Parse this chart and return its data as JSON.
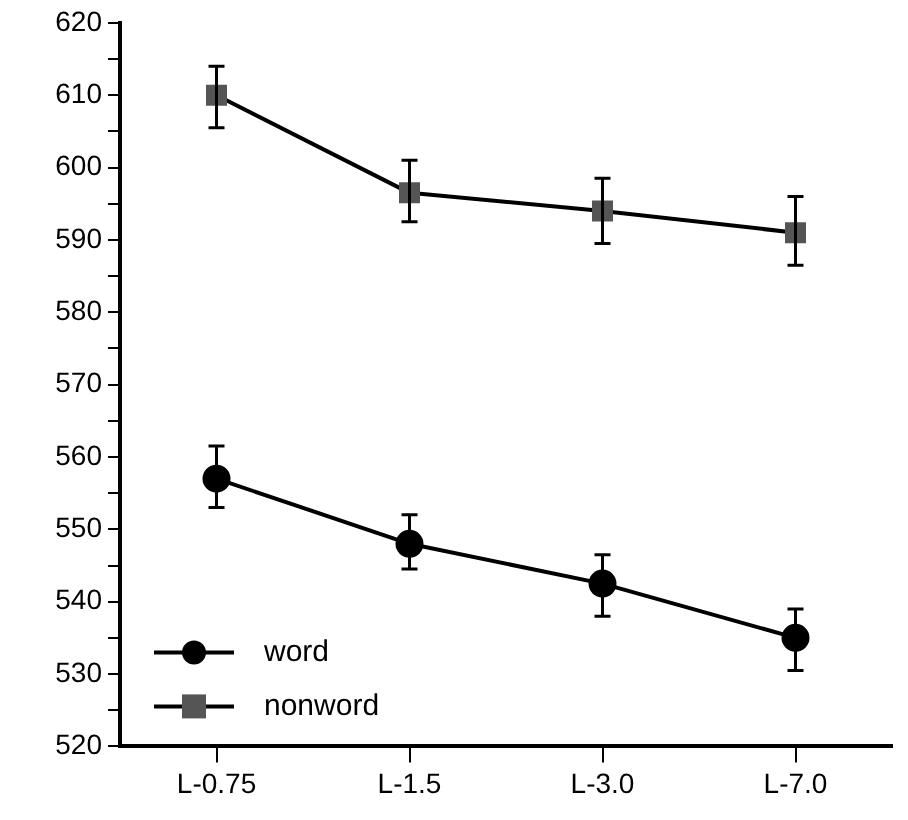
{
  "chart_data": {
    "type": "line",
    "categories": [
      "L-0.75",
      "L-1.5",
      "L-3.0",
      "L-7.0"
    ],
    "series": [
      {
        "name": "word",
        "color": "#000000",
        "marker": "circle",
        "values": [
          557,
          548,
          542.5,
          535
        ],
        "errors": [
          [
            553,
            561.5
          ],
          [
            544.5,
            552
          ],
          [
            538,
            546.5
          ],
          [
            530.5,
            539
          ]
        ]
      },
      {
        "name": "nonword",
        "color": "#555555",
        "marker": "square",
        "values": [
          610,
          596.5,
          594,
          591
        ],
        "errors": [
          [
            605.5,
            614
          ],
          [
            592.5,
            601
          ],
          [
            589.5,
            598.5
          ],
          [
            586.5,
            596
          ]
        ]
      }
    ],
    "ylim": [
      520,
      620
    ],
    "yticks": [
      520,
      {
        "value": 525,
        "label": null
      },
      530,
      {
        "value": 535,
        "label": null
      },
      540,
      {
        "value": 545,
        "label": null
      },
      550,
      {
        "value": 555,
        "label": null
      },
      560,
      {
        "value": 565,
        "label": null
      },
      570,
      {
        "value": 575,
        "label": null
      },
      580,
      {
        "value": 585,
        "label": null
      },
      590,
      {
        "value": 595,
        "label": null
      },
      600,
      {
        "value": 605,
        "label": null
      },
      610,
      {
        "value": 615,
        "label": null
      },
      620
    ],
    "grid": false,
    "legend": "bottom left",
    "line_style": "solid"
  }
}
